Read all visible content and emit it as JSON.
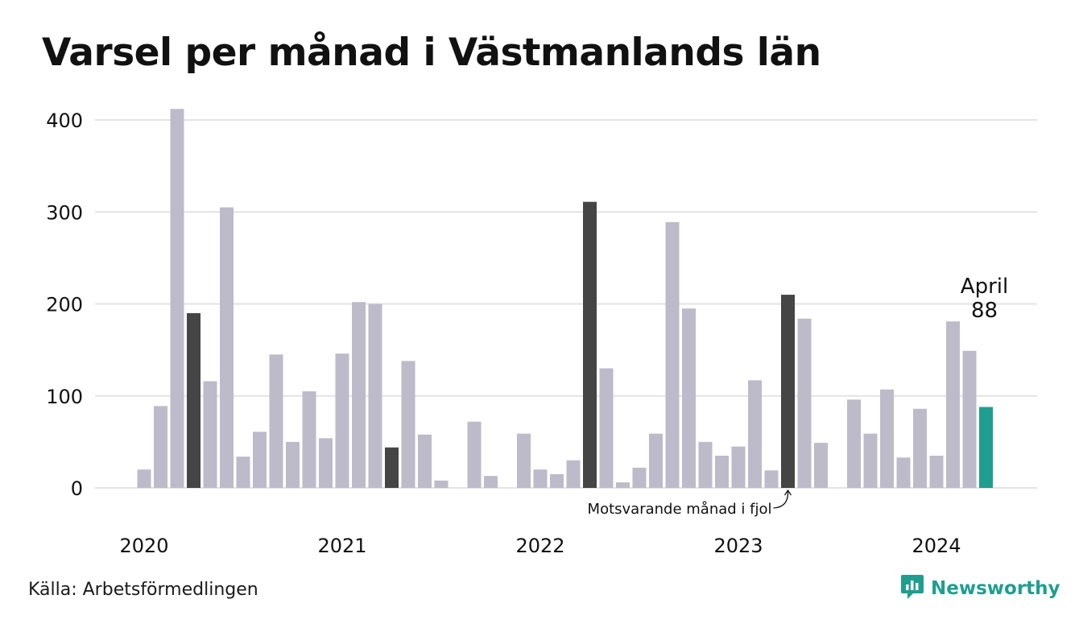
{
  "title": "Varsel per månad i Västmanlands län",
  "source": "Källa: Arbetsförmedlingen",
  "brand": {
    "name": "Newsworthy",
    "icon": "newsworthy-logo-icon",
    "color": "#1f9e8f"
  },
  "colors": {
    "bar": "#bdbbc9",
    "comparison": "#454545",
    "highlight": "#1f9e8f",
    "grid": "#e3e3e3"
  },
  "chart_data": {
    "type": "bar",
    "start": "2020-01",
    "ylim": [
      0,
      410
    ],
    "yticks": [
      0,
      100,
      200,
      300,
      400
    ],
    "xtick_labels": [
      "2020",
      "2021",
      "2022",
      "2023",
      "2024"
    ],
    "grid": true,
    "categories": [
      "2020-01",
      "2020-02",
      "2020-03",
      "2020-04",
      "2020-05",
      "2020-06",
      "2020-07",
      "2020-08",
      "2020-09",
      "2020-10",
      "2020-11",
      "2020-12",
      "2021-01",
      "2021-02",
      "2021-03",
      "2021-04",
      "2021-05",
      "2021-06",
      "2021-07",
      "2021-08",
      "2021-09",
      "2021-10",
      "2021-11",
      "2021-12",
      "2022-01",
      "2022-02",
      "2022-03",
      "2022-04",
      "2022-05",
      "2022-06",
      "2022-07",
      "2022-08",
      "2022-09",
      "2022-10",
      "2022-11",
      "2022-12",
      "2023-01",
      "2023-02",
      "2023-03",
      "2023-04",
      "2023-05",
      "2023-06",
      "2023-07",
      "2023-08",
      "2023-09",
      "2023-10",
      "2023-11",
      "2023-12",
      "2024-01",
      "2024-02",
      "2024-03",
      "2024-04"
    ],
    "values": [
      20,
      89,
      412,
      190,
      116,
      305,
      34,
      61,
      145,
      50,
      105,
      54,
      146,
      202,
      200,
      44,
      138,
      58,
      8,
      0,
      72,
      13,
      0,
      59,
      20,
      15,
      30,
      311,
      130,
      6,
      22,
      59,
      289,
      195,
      50,
      35,
      45,
      117,
      19,
      210,
      184,
      49,
      0,
      96,
      59,
      107,
      33,
      86,
      35,
      181,
      149,
      88
    ],
    "comparison_months": [
      "2020-04",
      "2021-04",
      "2022-04",
      "2023-04"
    ],
    "highlight_month": "2024-04",
    "annotations": {
      "highlight_label": "April",
      "highlight_value": "88",
      "comparison_note": "Motsvarande månad i fjol"
    }
  }
}
